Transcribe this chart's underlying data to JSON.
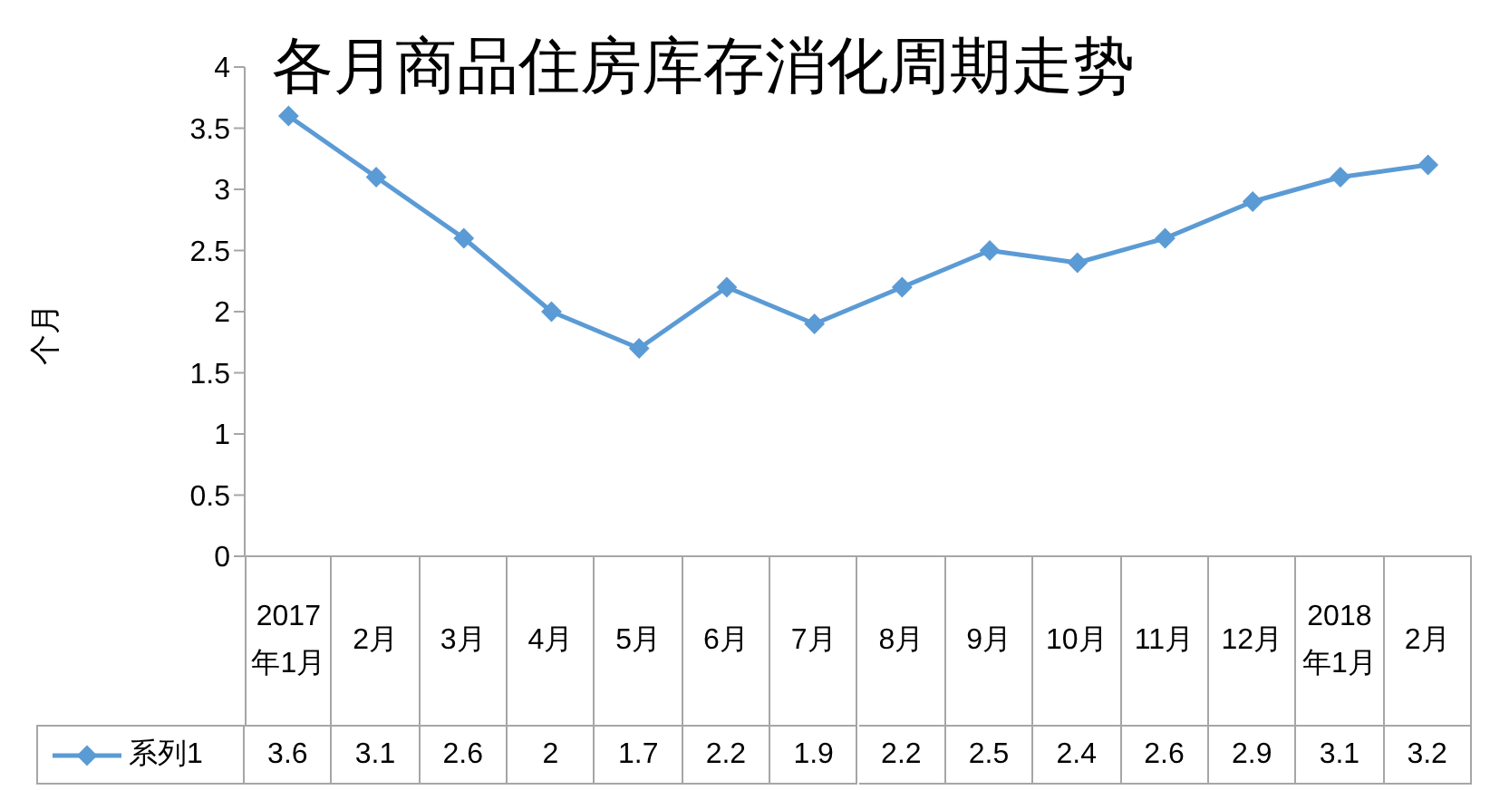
{
  "chart_data": {
    "type": "line",
    "title": "各月商品住房库存消化周期走势",
    "ylabel": "个月",
    "categories": [
      "2017年1月",
      "2月",
      "3月",
      "4月",
      "5月",
      "6月",
      "7月",
      "8月",
      "9月",
      "10月",
      "11月",
      "12月",
      "2018年1月",
      "2月"
    ],
    "series": [
      {
        "name": "系列1",
        "color": "#5b9bd5",
        "values": [
          3.6,
          3.1,
          2.6,
          2,
          1.7,
          2.2,
          1.9,
          2.2,
          2.5,
          2.4,
          2.6,
          2.9,
          3.1,
          3.2
        ]
      }
    ],
    "ylim": [
      0,
      4
    ],
    "yticks": [
      0,
      0.5,
      1,
      1.5,
      2,
      2.5,
      3,
      3.5,
      4
    ],
    "legend": "bottom",
    "data_labels": true,
    "marker": "diamond",
    "line_style": "solid"
  }
}
